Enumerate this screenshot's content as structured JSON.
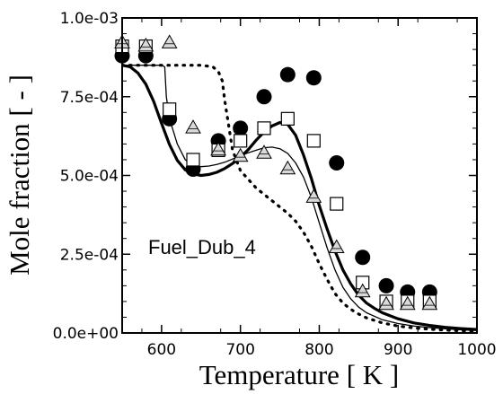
{
  "chart_data": {
    "type": "line",
    "title": "",
    "annotation": "Fuel_Dub_4",
    "xlabel": "Temperature [ K ]",
    "ylabel": "Mole fraction [ - ]",
    "xlim": [
      550,
      1000
    ],
    "ylim": [
      0,
      0.001
    ],
    "xticks": [
      600,
      700,
      800,
      900,
      1000
    ],
    "xtick_labels": [
      "600",
      "700",
      "800",
      "900",
      "1000"
    ],
    "yticks": [
      0,
      0.00025,
      0.0005,
      0.00075,
      0.001
    ],
    "ytick_labels": [
      "0.0e+00",
      "2.5e-04",
      "5.0e-04",
      "7.5e-04",
      "1.0e-03"
    ],
    "grid": false,
    "series": [
      {
        "style": "thick-solid",
        "color": "#000000",
        "x": [
          550,
          560,
          570,
          580,
          590,
          600,
          610,
          620,
          630,
          640,
          650,
          660,
          670,
          680,
          690,
          700,
          710,
          720,
          730,
          740,
          750,
          760,
          770,
          780,
          790,
          800,
          810,
          820,
          830,
          840,
          850,
          860,
          870,
          880,
          900,
          920,
          940,
          960,
          980,
          1000
        ],
        "y": [
          0.00085,
          0.000845,
          0.000825,
          0.00079,
          0.000735,
          0.000665,
          0.000598,
          0.000548,
          0.000518,
          0.000505,
          0.0005,
          0.000503,
          0.00051,
          0.000522,
          0.000538,
          0.000558,
          0.000582,
          0.000612,
          0.000638,
          0.000657,
          0.000668,
          0.000662,
          0.000628,
          0.000565,
          0.00049,
          0.000405,
          0.00033,
          0.00026,
          0.0002,
          0.000155,
          0.00012,
          9.5e-05,
          7.8e-05,
          6.4e-05,
          4.5e-05,
          3.2e-05,
          2.4e-05,
          1.8e-05,
          1.4e-05,
          1.1e-05
        ]
      },
      {
        "style": "thin-solid",
        "color": "#000000",
        "x": [
          550,
          600,
          604,
          606,
          610,
          620,
          630,
          640,
          650,
          660,
          670,
          680,
          690,
          700,
          710,
          720,
          730,
          740,
          750,
          760,
          770,
          780,
          790,
          800,
          810,
          820,
          830,
          840,
          850,
          860,
          880,
          900,
          920,
          940,
          960,
          980,
          1000
        ],
        "y": [
          0.00085,
          0.00085,
          0.000845,
          0.00075,
          0.00068,
          0.0006,
          0.00055,
          0.00053,
          0.000528,
          0.00053,
          0.000535,
          0.000542,
          0.000552,
          0.000562,
          0.000572,
          0.00058,
          0.000588,
          0.00059,
          0.000585,
          0.00057,
          0.00054,
          0.000495,
          0.00043,
          0.00035,
          0.00027,
          0.0002,
          0.000145,
          0.000108,
          8.2e-05,
          6.4e-05,
          4.2e-05,
          3e-05,
          2.2e-05,
          1.7e-05,
          1.3e-05,
          1e-05,
          8e-06
        ]
      },
      {
        "style": "dotted",
        "color": "#000000",
        "x": [
          550,
          650,
          665,
          672,
          677,
          680,
          685,
          690,
          700,
          720,
          740,
          760,
          770,
          780,
          790,
          800,
          810,
          820,
          830,
          840,
          850,
          860,
          880,
          900,
          920,
          940,
          960,
          980,
          1000
        ],
        "y": [
          0.00085,
          0.00085,
          0.000845,
          0.00083,
          0.0008,
          0.00074,
          0.00066,
          0.00058,
          0.000515,
          0.00046,
          0.00042,
          0.00038,
          0.000355,
          0.00032,
          0.000275,
          0.00022,
          0.00017,
          0.000125,
          9.5e-05,
          7.5e-05,
          6e-05,
          4.8e-05,
          3.2e-05,
          2.2e-05,
          1.6e-05,
          1.2e-05,
          9e-06,
          7e-06,
          6e-06
        ]
      },
      {
        "marker": "filled-circle",
        "color": "#000000",
        "x": [
          550,
          580,
          610,
          640,
          672,
          700,
          730,
          760,
          793,
          822,
          855,
          885,
          912,
          940
        ],
        "y": [
          0.00088,
          0.00088,
          0.00068,
          0.00052,
          0.00061,
          0.00065,
          0.00075,
          0.00082,
          0.00081,
          0.00054,
          0.00024,
          0.00015,
          0.00013,
          0.00013
        ]
      },
      {
        "marker": "open-square",
        "color": "#000000",
        "x": [
          550,
          580,
          610,
          640,
          672,
          700,
          730,
          760,
          793,
          822,
          855,
          885,
          912,
          940
        ],
        "y": [
          0.00091,
          0.00091,
          0.00071,
          0.00055,
          0.00058,
          0.00061,
          0.00065,
          0.00068,
          0.00061,
          0.00041,
          0.00016,
          0.0001,
          0.0001,
          0.0001
        ]
      },
      {
        "marker": "open-triangle",
        "color": "#000000",
        "fill": "#d9d9d9",
        "x": [
          550,
          580,
          610,
          640,
          672,
          700,
          730,
          760,
          793,
          822,
          855,
          885,
          912,
          940
        ],
        "y": [
          0.00092,
          0.00091,
          0.00092,
          0.00065,
          0.00058,
          0.00056,
          0.00057,
          0.00052,
          0.00043,
          0.00027,
          0.00013,
          9e-05,
          9e-05,
          9e-05
        ]
      }
    ]
  }
}
